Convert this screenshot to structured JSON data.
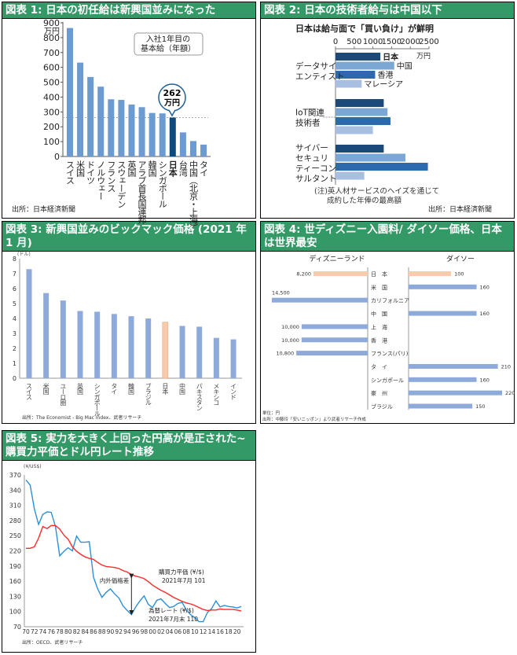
{
  "panels": [
    {
      "title": "図表 1: 日本の初任給は新興国並みになった"
    },
    {
      "title": "図表 2: 日本の技術者給与は中国以下"
    },
    {
      "title": "図表 3: 新興国並みのビックマック価格 (2021 年 1 月)"
    },
    {
      "title": "図表 4: 世ディズニー入園料/ ダイソー価格、日本は世界最安"
    },
    {
      "title": "図表 5: 実力を大きく上回った円高が是正された~購買力平価とドル円レート推移"
    }
  ],
  "chart_data": [
    {
      "type": "bar",
      "title": "入社1年目の基本給（年額）",
      "legend_lines": [
        "入社1年目の",
        "基本給（年額）"
      ],
      "ylabel": "万円",
      "ylim": [
        0,
        900
      ],
      "yticks": [
        0,
        100,
        200,
        300,
        400,
        500,
        600,
        700,
        800,
        900
      ],
      "categories": [
        "スイス",
        "米国",
        "ドイツ",
        "ノルウェー",
        "フランス",
        "スウェーデン",
        "英国",
        "アラブ首長国連邦",
        "韓国",
        "シンガポール",
        "日本",
        "台湾",
        "中国（北京・上海）",
        "タイ"
      ],
      "values": [
        865,
        632,
        535,
        470,
        385,
        381,
        350,
        332,
        293,
        290,
        262,
        162,
        104,
        80
      ],
      "highlight": "日本",
      "callout": [
        "262",
        "万円"
      ],
      "colors": {
        "bar": "#6b9bd0",
        "highlight": "#0e4a7d"
      },
      "source": "出所：日本経済新聞"
    },
    {
      "type": "bar",
      "orientation": "horizontal",
      "title": "日本は給与面で「買い負け」が鮮明",
      "unit": "万円",
      "xlim": [
        0,
        2500
      ],
      "xticks": [
        0,
        500,
        1000,
        1500,
        2000,
        2500
      ],
      "categories": [
        [
          "データサイ",
          "エンティスト"
        ],
        [
          "IoT関連",
          "技術者"
        ],
        [
          "サイバー",
          "セキュリ",
          "ティーコン",
          "サルタント"
        ]
      ],
      "series": [
        {
          "name": "日本",
          "values": [
            1200,
            1290,
            1290
          ],
          "color": "#1b4a78"
        },
        {
          "name": "中国",
          "values": [
            1570,
            1390,
            1870
          ],
          "color": "#7ba7d5"
        },
        {
          "name": "香港",
          "values": [
            1060,
            1470,
            2470
          ],
          "color": "#2d69ad"
        },
        {
          "name": "マレーシア",
          "values": [
            700,
            1000,
            770
          ],
          "color": "#a9bfe2"
        }
      ],
      "note": [
        "(注)英人材サービスのヘイズを通じて",
        "成約した年俸の最高額"
      ],
      "source": "出所：日本経済新聞"
    },
    {
      "type": "bar",
      "ylabel": "(ドル)",
      "ylim": [
        0,
        8
      ],
      "yticks": [
        0,
        1,
        2,
        3,
        4,
        5,
        6,
        7,
        8
      ],
      "categories": [
        "スイス",
        "米国",
        "ユーロ圏",
        "英国",
        "シンガポール",
        "タイ",
        "韓国",
        "ブラジル",
        "日本",
        "中国",
        "パキスタン",
        "メキシコ",
        "インド"
      ],
      "values": [
        7.3,
        5.7,
        5.2,
        4.5,
        4.45,
        4.3,
        4.15,
        4.0,
        3.75,
        3.5,
        3.45,
        2.7,
        2.6
      ],
      "highlight": "日本",
      "colors": {
        "bar": "#8eaadb",
        "highlight": "#f8cbad"
      },
      "source": "出所：The Economist - Big Mac Index、武者リサーチ"
    },
    {
      "type": "bar",
      "orientation": "horizontal",
      "series_titles": [
        "ディズニーランド",
        "ダイソー"
      ],
      "categories": [
        "日　本",
        "米　国",
        "カリフォルニア",
        "中　国",
        "上　海",
        "香　港",
        "フランス(パリ)",
        "タ　イ",
        "シンガポール",
        "豪　州",
        "ブラジル"
      ],
      "disney": [
        8200,
        null,
        14500,
        null,
        10000,
        10000,
        10800,
        null,
        null,
        null,
        null
      ],
      "disney_labels": [
        "8,200",
        "",
        "14,500",
        "",
        "10,000",
        "10,000",
        "10,800",
        "",
        "",
        "",
        ""
      ],
      "daiso": [
        100,
        160,
        null,
        160,
        null,
        null,
        null,
        210,
        160,
        220,
        150
      ],
      "highlight": "日　本",
      "colors": {
        "bar": "#8eaadb",
        "highlight": "#f8cbad"
      },
      "unit_note": "単位：円",
      "source": "出所：中藤玲「安いニッポン」より武者リサーチ作成"
    },
    {
      "type": "line",
      "ylabel": "(¥/US$)",
      "ylim": [
        70,
        370
      ],
      "yticks": [
        70,
        100,
        130,
        160,
        190,
        220,
        250,
        280,
        310,
        340,
        370
      ],
      "xlim": [
        1970,
        2021
      ],
      "xtick_labels": [
        "70",
        "72",
        "74",
        "76",
        "78",
        "80",
        "82",
        "84",
        "86",
        "88",
        "90",
        "92",
        "94",
        "96",
        "98",
        "00",
        "02",
        "04",
        "06",
        "08",
        "10",
        "12",
        "14",
        "16",
        "18",
        "20"
      ],
      "x": [
        1970,
        1971,
        1972,
        1973,
        1974,
        1975,
        1976,
        1977,
        1978,
        1979,
        1980,
        1981,
        1982,
        1983,
        1984,
        1985,
        1986,
        1987,
        1988,
        1989,
        1990,
        1991,
        1992,
        1993,
        1994,
        1995,
        1996,
        1997,
        1998,
        1999,
        2000,
        2001,
        2002,
        2003,
        2004,
        2005,
        2006,
        2007,
        2008,
        2009,
        2010,
        2011,
        2012,
        2013,
        2014,
        2015,
        2016,
        2017,
        2018,
        2019,
        2020,
        2021
      ],
      "series": [
        {
          "name": "為替レート",
          "color": "#2e8fd8",
          "values": [
            360,
            350,
            303,
            272,
            292,
            297,
            296,
            268,
            210,
            219,
            226,
            220,
            249,
            237,
            237,
            238,
            168,
            145,
            128,
            138,
            145,
            135,
            127,
            111,
            102,
            94,
            109,
            121,
            131,
            114,
            108,
            122,
            125,
            116,
            108,
            110,
            116,
            118,
            103,
            94,
            88,
            80,
            80,
            98,
            106,
            121,
            109,
            112,
            110,
            109,
            107,
            110
          ]
        },
        {
          "name": "購買力平価",
          "color": "#ff2a2a",
          "values": [
            225,
            225,
            228,
            245,
            268,
            264,
            270,
            270,
            263,
            251,
            243,
            228,
            219,
            213,
            208,
            205,
            203,
            197,
            192,
            189,
            188,
            187,
            185,
            181,
            178,
            173,
            170,
            168,
            165,
            159,
            152,
            147,
            142,
            138,
            133,
            128,
            124,
            120,
            117,
            115,
            112,
            108,
            104,
            102,
            103,
            103,
            105,
            104,
            104,
            104,
            103,
            101
          ]
        }
      ],
      "annotations": {
        "ppp": [
          "購買力平価 (¥/$)",
          "2021年7月 101"
        ],
        "fx": [
          "為替レート (¥/$)",
          "2021年7月末 110"
        ],
        "gap": "内外価格差",
        "gap_year": 1995
      },
      "source": "出所：OECD、武者リサーチ"
    }
  ]
}
